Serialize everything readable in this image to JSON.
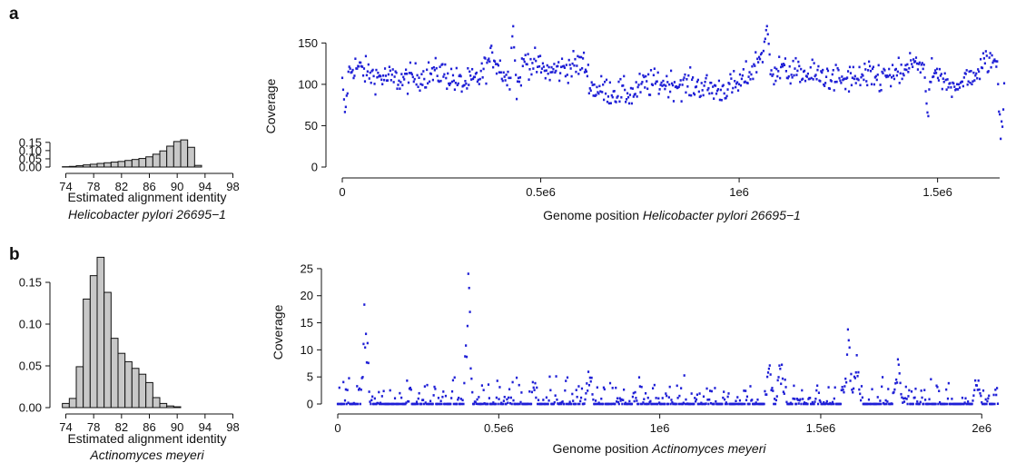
{
  "panels": [
    {
      "letter": "a",
      "organism": "Helicobacter pylori 26695−1",
      "hist_xlabel": "Estimated alignment identity",
      "cov_xlabel_prefix": "Genome position ",
      "cov_ylabel": "Coverage"
    },
    {
      "letter": "b",
      "organism": "Actinomyces meyeri",
      "hist_xlabel": "Estimated alignment identity",
      "cov_xlabel_prefix": "Genome position ",
      "cov_ylabel": "Coverage"
    }
  ],
  "chart_data": [
    {
      "type": "bar",
      "panel": "a",
      "xlabel": "Estimated alignment identity",
      "subtitle": "Helicobacter pylori 26695−1",
      "xlim": [
        73,
        100
      ],
      "ylim": [
        0,
        0.16
      ],
      "xticks": [
        74,
        78,
        82,
        86,
        90,
        94,
        98
      ],
      "yticks": [
        0.0,
        0.05,
        0.1,
        0.15
      ],
      "ytick_labels": [
        "0.00",
        "0.05",
        "0.10",
        "0.15"
      ],
      "bin_starts": [
        73,
        74,
        75,
        76,
        77,
        78,
        79,
        80,
        81,
        82,
        83,
        84,
        85,
        86,
        87,
        88,
        89,
        90,
        91,
        92,
        93,
        94,
        95,
        96,
        97,
        98,
        99
      ],
      "values": [
        0.0,
        0.002,
        0.004,
        0.008,
        0.013,
        0.017,
        0.022,
        0.026,
        0.03,
        0.034,
        0.04,
        0.046,
        0.052,
        0.062,
        0.078,
        0.098,
        0.127,
        0.155,
        0.165,
        0.12,
        0.01,
        0.0,
        0.0,
        0.0,
        0.0,
        0.0,
        0.0
      ]
    },
    {
      "type": "scatter",
      "panel": "a",
      "xlabel": "Genome position Helicobacter pylori 26695−1",
      "ylabel": "Coverage",
      "xlim": [
        0,
        1667867
      ],
      "ylim": [
        0,
        180
      ],
      "xticks": [
        0,
        500000,
        1000000,
        1500000
      ],
      "xtick_labels": [
        "0",
        "0.5e6",
        "1e6",
        "1.5e6"
      ],
      "yticks": [
        0,
        50,
        100,
        150
      ],
      "ytick_labels": [
        "0",
        "50",
        "100",
        "150"
      ],
      "genome_length": 1667867,
      "baseline": [
        [
          0,
          105
        ],
        [
          30000,
          122
        ],
        [
          80000,
          110
        ],
        [
          150000,
          105
        ],
        [
          200000,
          110
        ],
        [
          250000,
          115
        ],
        [
          300000,
          100
        ],
        [
          340000,
          105
        ],
        [
          380000,
          135
        ],
        [
          410000,
          110
        ],
        [
          440000,
          95
        ],
        [
          460000,
          130
        ],
        [
          520000,
          115
        ],
        [
          560000,
          120
        ],
        [
          610000,
          125
        ],
        [
          630000,
          95
        ],
        [
          700000,
          90
        ],
        [
          730000,
          88
        ],
        [
          760000,
          100
        ],
        [
          800000,
          102
        ],
        [
          850000,
          100
        ],
        [
          900000,
          98
        ],
        [
          950000,
          93
        ],
        [
          1000000,
          100
        ],
        [
          1030000,
          115
        ],
        [
          1060000,
          140
        ],
        [
          1080000,
          120
        ],
        [
          1130000,
          115
        ],
        [
          1200000,
          110
        ],
        [
          1260000,
          105
        ],
        [
          1330000,
          108
        ],
        [
          1400000,
          110
        ],
        [
          1450000,
          128
        ],
        [
          1480000,
          115
        ],
        [
          1520000,
          100
        ],
        [
          1580000,
          105
        ],
        [
          1630000,
          130
        ],
        [
          1667867,
          120
        ]
      ],
      "spikes": [
        [
          8000,
          55
        ],
        [
          430000,
          180
        ],
        [
          1070000,
          178
        ],
        [
          1475000,
          50
        ],
        [
          1660000,
          0
        ]
      ]
    },
    {
      "type": "bar",
      "panel": "b",
      "xlabel": "Estimated alignment identity",
      "subtitle": "Actinomyces meyeri",
      "xlim": [
        73,
        100
      ],
      "ylim": [
        0,
        0.2
      ],
      "xticks": [
        74,
        78,
        82,
        86,
        90,
        94,
        98
      ],
      "yticks": [
        0.0,
        0.05,
        0.1,
        0.15
      ],
      "ytick_labels": [
        "0.00",
        "0.05",
        "0.10",
        "0.15"
      ],
      "bin_starts": [
        73,
        74,
        75,
        76,
        77,
        78,
        79,
        80,
        81,
        82,
        83,
        84,
        85,
        86,
        87,
        88,
        89,
        90,
        91,
        92,
        93,
        94,
        95,
        96,
        97,
        98,
        99
      ],
      "values": [
        0.0,
        0.005,
        0.011,
        0.049,
        0.13,
        0.158,
        0.18,
        0.138,
        0.083,
        0.065,
        0.055,
        0.047,
        0.04,
        0.03,
        0.012,
        0.005,
        0.002,
        0.001,
        0.0,
        0.0,
        0.0,
        0.0,
        0.0,
        0.0,
        0.0,
        0.0,
        0.0
      ]
    },
    {
      "type": "scatter",
      "panel": "b",
      "xlabel": "Genome position Actinomyces meyeri",
      "ylabel": "Coverage",
      "xlim": [
        0,
        2050000
      ],
      "ylim": [
        0,
        27
      ],
      "xticks": [
        0,
        500000,
        1000000,
        1500000,
        2000000
      ],
      "xtick_labels": [
        "0",
        "0.5e6",
        "1e6",
        "1.5e6",
        "2e6"
      ],
      "yticks": [
        0,
        5,
        10,
        15,
        20,
        25
      ],
      "ytick_labels": [
        "0",
        "5",
        "10",
        "15",
        "20",
        "25"
      ],
      "genome_length": 2050000,
      "clusters": [
        [
          85000,
          22
        ],
        [
          405000,
          27
        ],
        [
          780000,
          7
        ],
        [
          1340000,
          9
        ],
        [
          1375000,
          10
        ],
        [
          1585000,
          15
        ],
        [
          1610000,
          11
        ],
        [
          1740000,
          9
        ],
        [
          1985000,
          7
        ]
      ]
    }
  ]
}
